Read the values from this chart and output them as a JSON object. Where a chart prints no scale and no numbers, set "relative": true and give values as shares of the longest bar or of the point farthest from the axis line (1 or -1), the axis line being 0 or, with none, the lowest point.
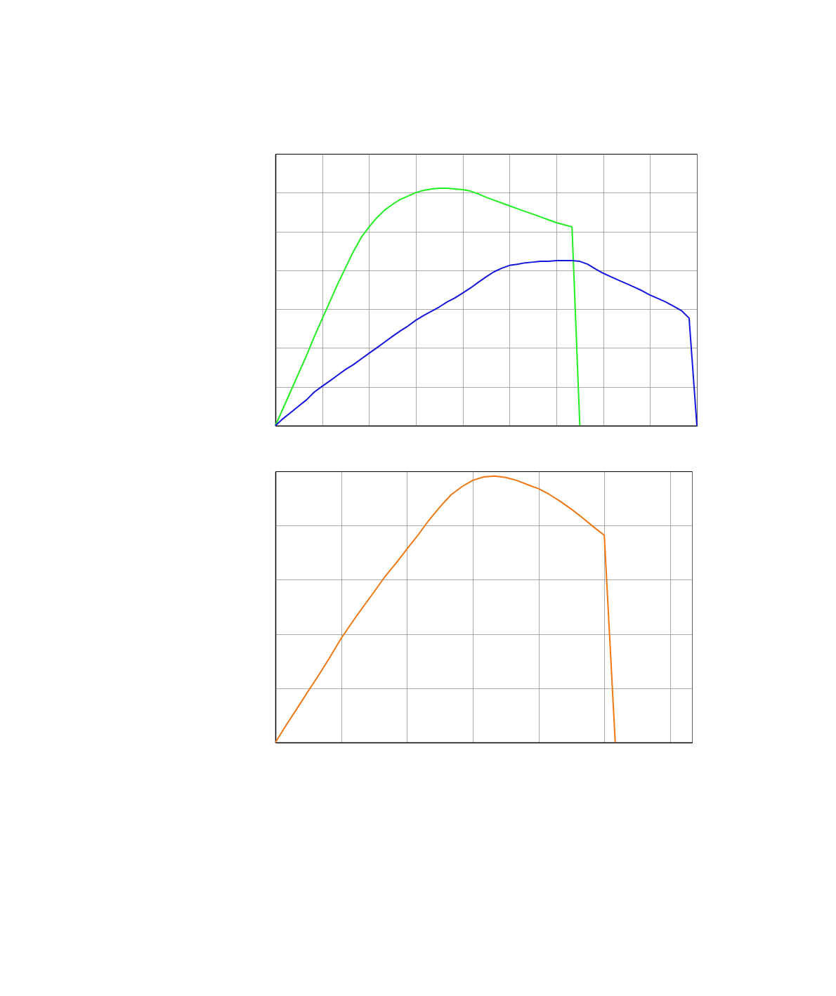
{
  "chart_data": [
    {
      "type": "line",
      "relative": true,
      "grid": true,
      "tick_labels": false,
      "categories": [
        null,
        null,
        null,
        null,
        null,
        null,
        null,
        null,
        null,
        null,
        null,
        null,
        null,
        null,
        null,
        null,
        null,
        null,
        null,
        null,
        null,
        null,
        null,
        null,
        null,
        null,
        null,
        null,
        null,
        null,
        null,
        null,
        null,
        null,
        null,
        null,
        null,
        null,
        null,
        null,
        null,
        null,
        null,
        null,
        null,
        null,
        null,
        null,
        null,
        null,
        null,
        null,
        null,
        null,
        null
      ],
      "series": [
        {
          "color": "#22ee22",
          "values": [
            0,
            0.074,
            0.148,
            0.222,
            0.296,
            0.376,
            0.45,
            0.524,
            0.598,
            0.666,
            0.734,
            0.793,
            0.837,
            0.876,
            0.908,
            0.932,
            0.953,
            0.967,
            0.982,
            0.991,
            0.997,
            1,
            1,
            0.997,
            0.994,
            0.988,
            0.976,
            0.962,
            0.95,
            0.938,
            0.926,
            0.914,
            0.902,
            0.891,
            0.879,
            0.867,
            0.855,
            0.846,
            0.837,
            0,
            null,
            null,
            null,
            null,
            null,
            null,
            null,
            null,
            null,
            null,
            null,
            null,
            null,
            null,
            null
          ]
        },
        {
          "color": "#1515dd",
          "values": [
            0,
            0.03,
            0.056,
            0.083,
            0.109,
            0.142,
            0.166,
            0.189,
            0.213,
            0.237,
            0.257,
            0.281,
            0.305,
            0.328,
            0.352,
            0.376,
            0.399,
            0.42,
            0.444,
            0.464,
            0.482,
            0.5,
            0.521,
            0.538,
            0.559,
            0.58,
            0.604,
            0.627,
            0.648,
            0.663,
            0.675,
            0.68,
            0.686,
            0.689,
            0.692,
            0.692,
            0.695,
            0.695,
            0.695,
            0.692,
            0.68,
            0.66,
            0.642,
            0.627,
            0.612,
            0.598,
            0.583,
            0.568,
            0.55,
            0.536,
            0.521,
            0.503,
            0.485,
            0.453,
            0
          ]
        }
      ]
    },
    {
      "type": "line",
      "relative": true,
      "grid": true,
      "tick_labels": false,
      "categories": [
        null,
        null,
        null,
        null,
        null,
        null,
        null,
        null,
        null,
        null,
        null,
        null,
        null,
        null,
        null,
        null,
        null,
        null,
        null,
        null,
        null,
        null,
        null,
        null,
        null,
        null,
        null,
        null,
        null,
        null,
        null,
        null,
        null,
        null,
        null,
        null,
        null,
        null,
        null
      ],
      "series": [
        {
          "color": "#ee7711",
          "values": [
            0,
            0.066,
            0.129,
            0.193,
            0.256,
            0.322,
            0.391,
            0.451,
            0.509,
            0.565,
            0.623,
            0.673,
            0.726,
            0.778,
            0.834,
            0.884,
            0.929,
            0.96,
            0.984,
            0.997,
            1,
            0.995,
            0.984,
            0.968,
            0.953,
            0.931,
            0.905,
            0.876,
            0.844,
            0.81,
            0.778,
            0,
            null,
            null,
            null,
            null,
            null,
            null,
            null
          ]
        }
      ]
    }
  ]
}
